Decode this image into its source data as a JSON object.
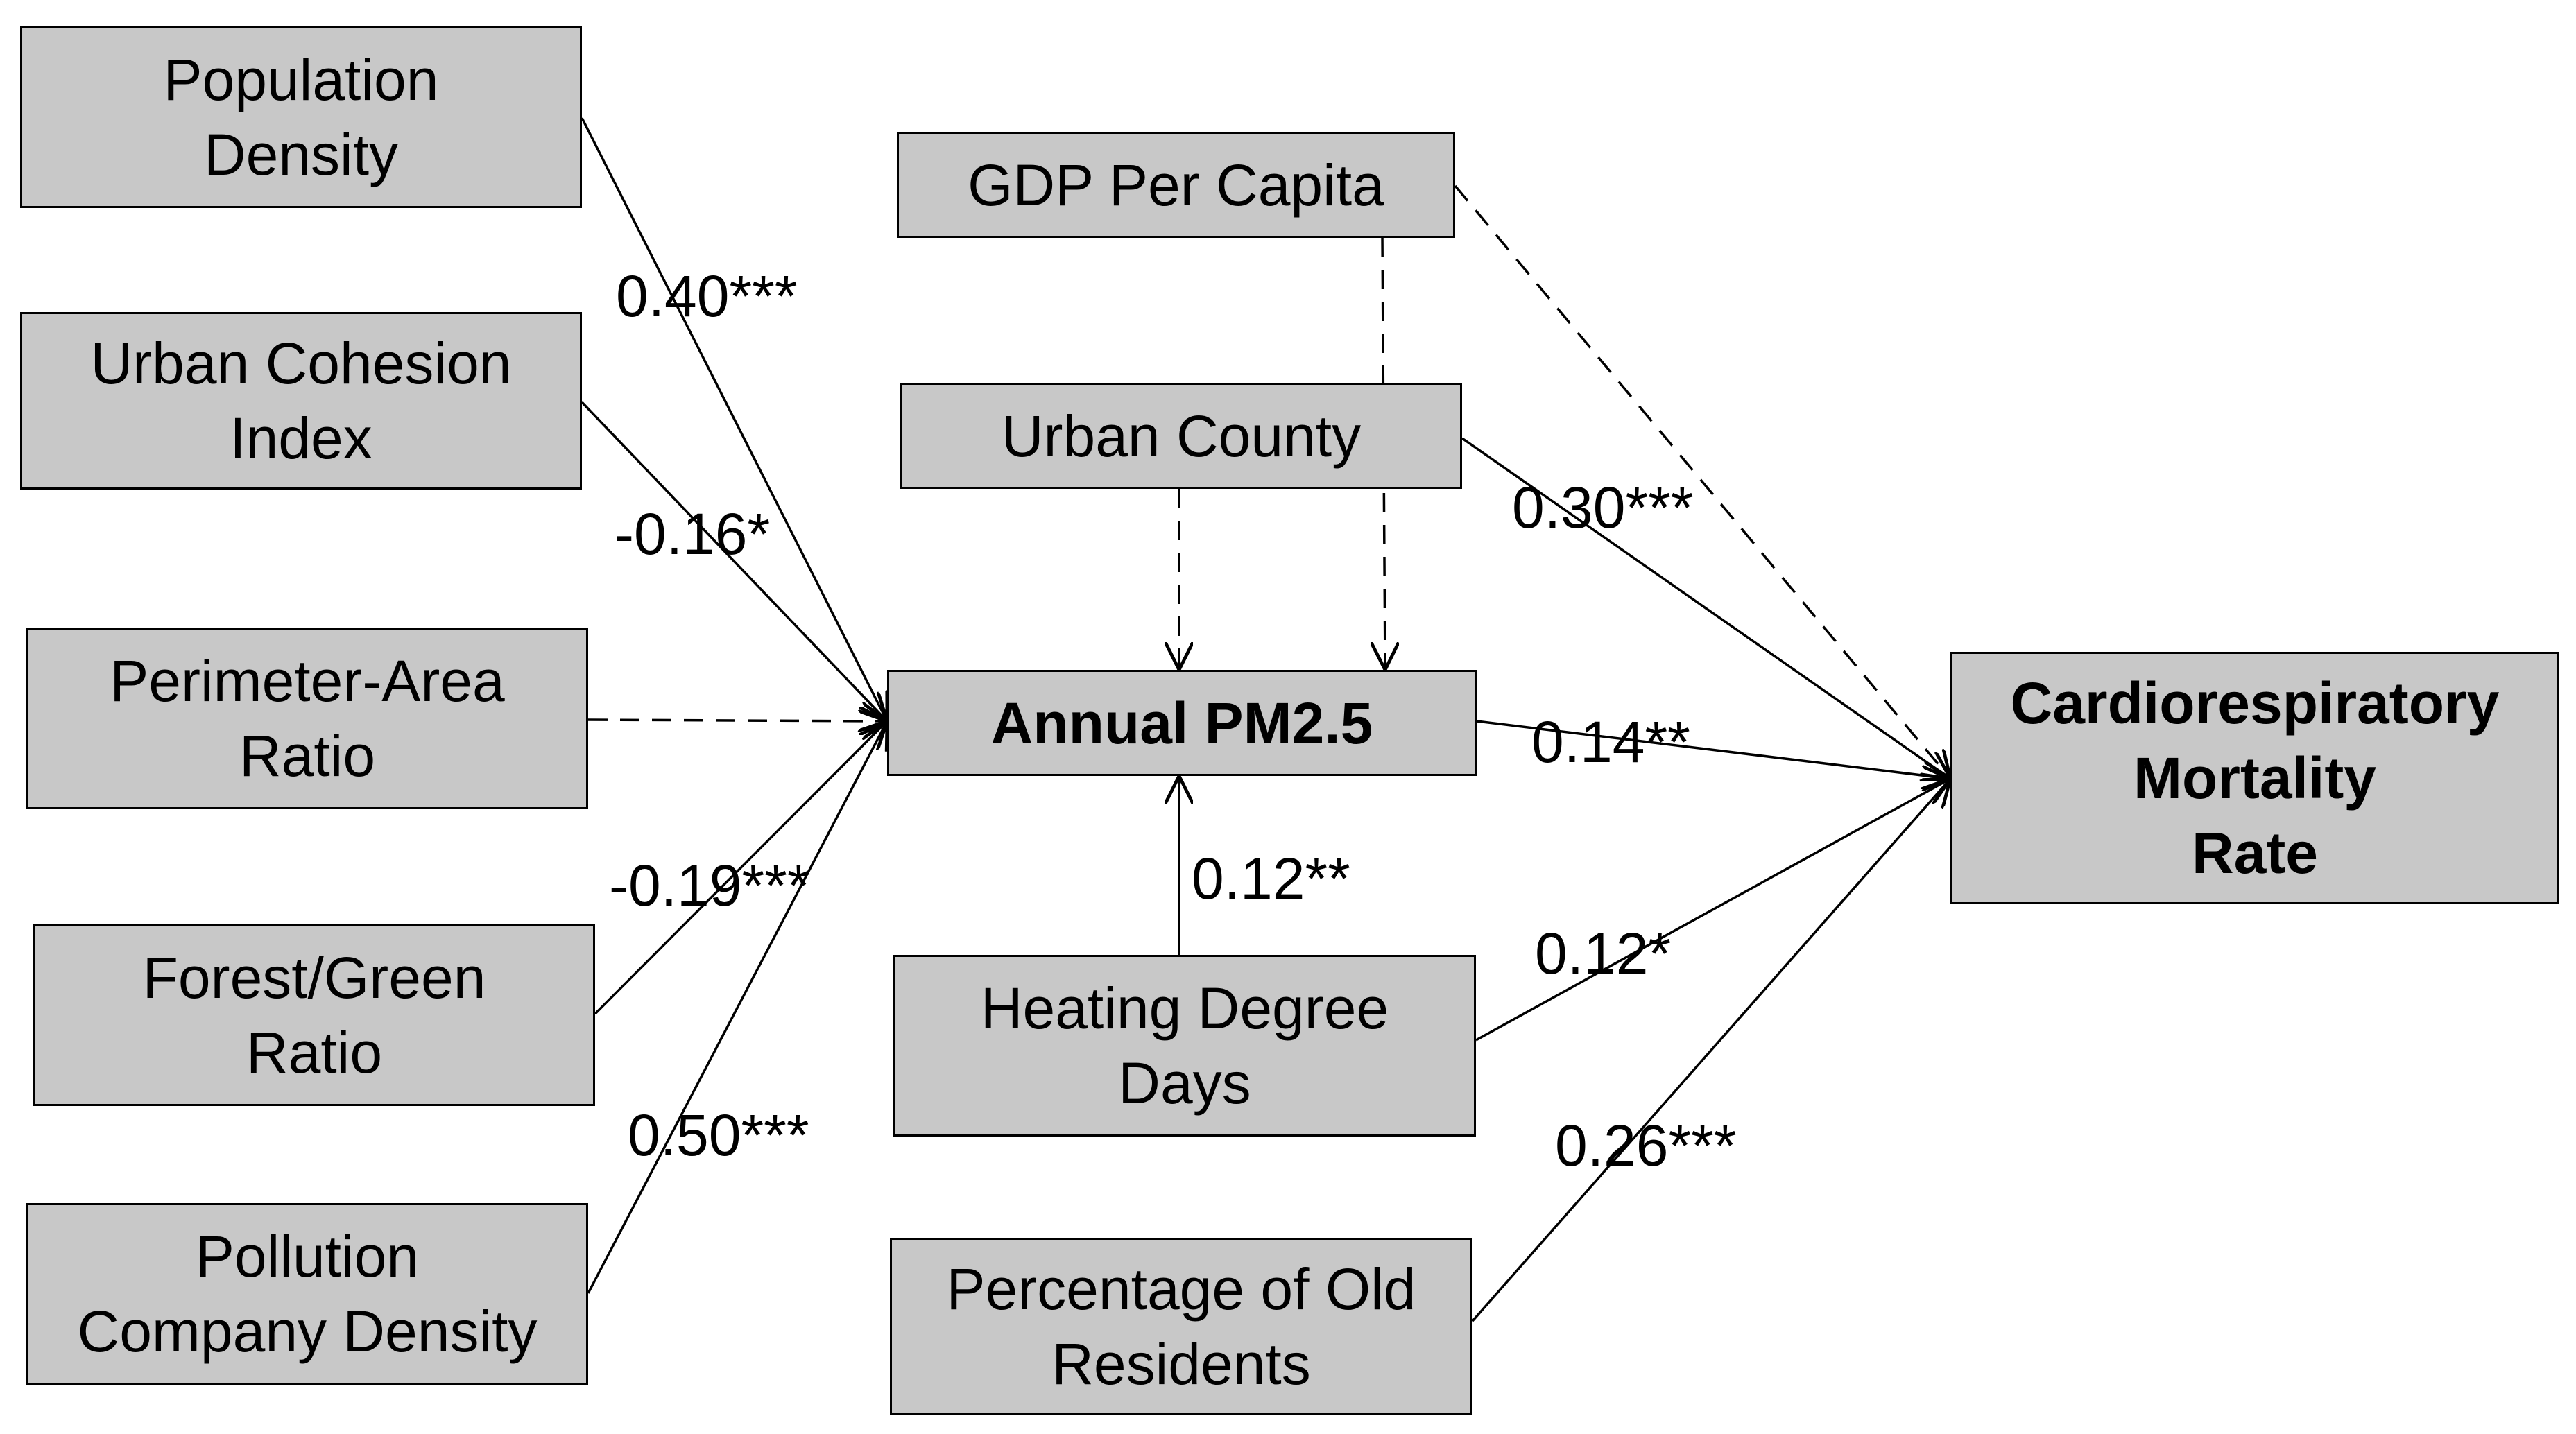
{
  "colors": {
    "box_fill": "#c8c8c8",
    "box_border": "#000000"
  },
  "nodes": {
    "population_density": "Population\nDensity",
    "urban_cohesion_index": "Urban Cohesion\nIndex",
    "perimeter_area_ratio": "Perimeter-Area\nRatio",
    "forest_green_ratio": "Forest/Green\nRatio",
    "pollution_company_density": "Pollution\nCompany Density",
    "gdp_per_capita": "GDP Per Capita",
    "urban_county": "Urban County",
    "annual_pm25": "Annual PM2.5",
    "heating_degree_days": "Heating Degree\nDays",
    "percentage_old_residents": "Percentage of Old\nResidents",
    "cardiorespiratory_mortality": "Cardiorespiratory\nMortality\nRate"
  },
  "edges": [
    {
      "id": "pop-pm",
      "from": "population_density",
      "to": "annual_pm25",
      "style": "solid",
      "coefficient": "0.40***"
    },
    {
      "id": "uci-pm",
      "from": "urban_cohesion_index",
      "to": "annual_pm25",
      "style": "solid",
      "coefficient": "-0.16*"
    },
    {
      "id": "par-pm",
      "from": "perimeter_area_ratio",
      "to": "annual_pm25",
      "style": "dashed",
      "coefficient": ""
    },
    {
      "id": "fgr-pm",
      "from": "forest_green_ratio",
      "to": "annual_pm25",
      "style": "solid",
      "coefficient": "-0.19***"
    },
    {
      "id": "pcd-pm",
      "from": "pollution_company_density",
      "to": "annual_pm25",
      "style": "solid",
      "coefficient": "0.50***"
    },
    {
      "id": "uc-pm",
      "from": "urban_county",
      "to": "annual_pm25",
      "style": "dashed",
      "coefficient": ""
    },
    {
      "id": "gdp-pm",
      "from": "gdp_per_capita",
      "to": "annual_pm25",
      "style": "dashed",
      "coefficient": ""
    },
    {
      "id": "hdd-pm",
      "from": "heating_degree_days",
      "to": "annual_pm25",
      "style": "solid",
      "coefficient": "0.12**"
    },
    {
      "id": "gdp-mort",
      "from": "gdp_per_capita",
      "to": "cardiorespiratory_mortality",
      "style": "dashed",
      "coefficient": ""
    },
    {
      "id": "uc-mort",
      "from": "urban_county",
      "to": "cardiorespiratory_mortality",
      "style": "solid",
      "coefficient": "0.30***"
    },
    {
      "id": "pm-mort",
      "from": "annual_pm25",
      "to": "cardiorespiratory_mortality",
      "style": "solid",
      "coefficient": "0.14**"
    },
    {
      "id": "hdd-mort",
      "from": "heating_degree_days",
      "to": "cardiorespiratory_mortality",
      "style": "solid",
      "coefficient": "0.12*"
    },
    {
      "id": "por-mort",
      "from": "percentage_old_residents",
      "to": "cardiorespiratory_mortality",
      "style": "solid",
      "coefficient": "0.26***"
    }
  ]
}
